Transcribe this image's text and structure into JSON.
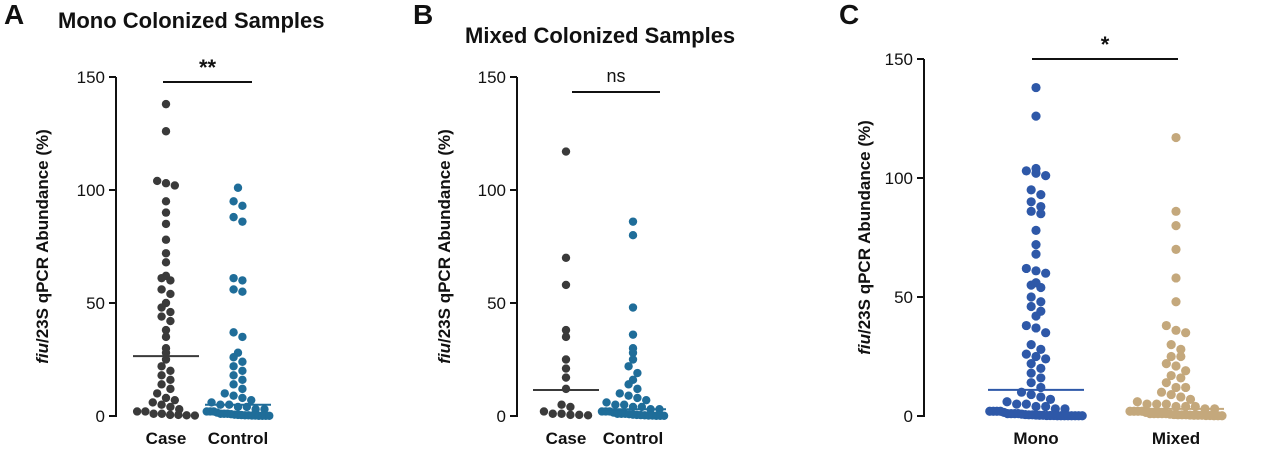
{
  "panel_labels": [
    "A",
    "B",
    "C"
  ],
  "chart_data": [
    {
      "type": "scatter",
      "subtype": "dot-plot",
      "panel": "A",
      "title": "Mono Colonized Samples",
      "ylabel_italic": "fiu",
      "ylabel_rest": "/23S qPCR Abundance (%)",
      "ylim": [
        0,
        150
      ],
      "yticks": [
        0,
        50,
        100,
        150
      ],
      "categories": [
        "Case",
        "Control"
      ],
      "colors": [
        "#3a3a3a",
        "#1f6d99"
      ],
      "significance": "**",
      "medians": [
        26.5,
        5
      ],
      "series": [
        {
          "values": [
            138,
            126,
            104,
            103,
            102,
            95,
            90,
            85,
            78,
            72,
            68,
            62,
            61,
            60,
            56,
            54,
            50,
            48,
            46,
            44,
            42,
            38,
            35,
            30,
            28,
            25,
            22,
            20,
            18,
            16,
            14,
            12,
            10,
            8,
            7,
            6,
            5,
            4,
            3,
            2,
            2,
            1,
            1,
            0.5,
            0.5,
            0.3,
            0.2
          ]
        },
        {
          "values": [
            101,
            95,
            93,
            88,
            86,
            61,
            60,
            56,
            55,
            37,
            35,
            28,
            26,
            24,
            22,
            20,
            18,
            16,
            14,
            12,
            10,
            9,
            8,
            7,
            6,
            5,
            5,
            4,
            4,
            3,
            3,
            2,
            2,
            2,
            1.5,
            1,
            1,
            1,
            0.8,
            0.6,
            0.5,
            0.4,
            0.3,
            0.3,
            0.2,
            0.2,
            0.1,
            0.1,
            0.1,
            0.1
          ]
        }
      ]
    },
    {
      "type": "scatter",
      "subtype": "dot-plot",
      "panel": "B",
      "title": "Mixed Colonized Samples",
      "ylabel_italic": "fiu",
      "ylabel_rest": "/23S qPCR Abundance (%)",
      "ylim": [
        0,
        150
      ],
      "yticks": [
        0,
        50,
        100,
        150
      ],
      "categories": [
        "Case",
        "Control"
      ],
      "colors": [
        "#3a3a3a",
        "#1f6d99"
      ],
      "significance": "ns",
      "medians": [
        11.5,
        3
      ],
      "series": [
        {
          "values": [
            117,
            70,
            58,
            38,
            35,
            25,
            21,
            17,
            12,
            5,
            4,
            2,
            1,
            1,
            0.5,
            0.5,
            0.3
          ]
        },
        {
          "values": [
            86,
            80,
            48,
            36,
            30,
            28,
            25,
            22,
            19,
            16,
            14,
            12,
            10,
            9,
            8,
            7,
            6,
            5,
            5,
            4,
            4,
            3,
            3,
            2,
            2,
            2,
            1.5,
            1,
            1,
            1,
            0.8,
            0.6,
            0.5,
            0.4,
            0.3,
            0.2,
            0.2,
            0.1,
            0.1,
            0.1
          ]
        }
      ]
    },
    {
      "type": "scatter",
      "subtype": "dot-plot",
      "panel": "C",
      "title": "",
      "ylabel_italic": "fiu",
      "ylabel_rest": "/23S qPCR Abundance (%)",
      "ylim": [
        0,
        150
      ],
      "yticks": [
        0,
        50,
        100,
        150
      ],
      "categories": [
        "Mono",
        "Mixed"
      ],
      "colors": [
        "#2e58a8",
        "#c4a87c"
      ],
      "significance": "*",
      "medians": [
        11,
        3
      ],
      "series": [
        {
          "values": [
            138,
            126,
            104,
            103,
            102,
            101,
            95,
            93,
            90,
            88,
            86,
            85,
            78,
            72,
            68,
            62,
            61,
            60,
            56,
            55,
            54,
            50,
            48,
            46,
            44,
            42,
            38,
            37,
            35,
            30,
            28,
            26,
            25,
            24,
            22,
            20,
            18,
            16,
            14,
            12,
            10,
            9,
            8,
            7,
            6,
            5,
            5,
            4,
            4,
            3,
            3,
            2,
            2,
            2,
            2,
            1.5,
            1,
            1,
            1,
            1,
            0.8,
            0.6,
            0.5,
            0.5,
            0.4,
            0.3,
            0.3,
            0.2,
            0.2,
            0.2,
            0.1,
            0.1,
            0.1,
            0.1,
            0.1,
            0.1,
            0.1,
            0.1
          ]
        },
        {
          "values": [
            117,
            86,
            80,
            70,
            58,
            48,
            38,
            36,
            35,
            30,
            28,
            25,
            25,
            22,
            21,
            19,
            17,
            16,
            14,
            12,
            12,
            10,
            9,
            8,
            7,
            6,
            5,
            5,
            5,
            4,
            4,
            4,
            3,
            3,
            2,
            2,
            2,
            2,
            1.5,
            1,
            1,
            1,
            1,
            1,
            0.8,
            0.6,
            0.5,
            0.5,
            0.5,
            0.4,
            0.3,
            0.3,
            0.3,
            0.2,
            0.2,
            0.1,
            0.1,
            0.1
          ]
        }
      ]
    }
  ]
}
